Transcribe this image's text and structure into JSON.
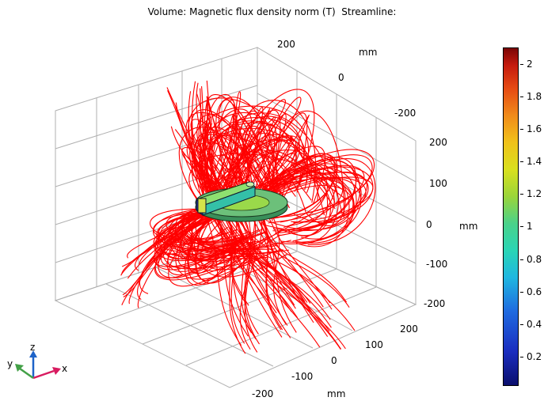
{
  "plot": {
    "title": "Volume: Magnetic flux density norm (T)  Streamline:"
  },
  "axes": {
    "top_ticks": [
      "200",
      "0",
      "-200"
    ],
    "top_unit": "mm",
    "right_ticks": [
      "200",
      "100",
      "0",
      "-100",
      "-200"
    ],
    "right_unit": "mm",
    "front_ticks": [
      "200",
      "100",
      "0",
      "-100",
      "-200"
    ],
    "front_unit": "mm"
  },
  "triad": {
    "x": "x",
    "y": "y",
    "z": "z"
  },
  "colorbar": {
    "ticks": [
      "2",
      "1.8",
      "1.6",
      "1.4",
      "1.2",
      "1",
      "0.8",
      "0.6",
      "0.4",
      "0.2"
    ],
    "range": [
      0.02,
      2.1
    ]
  },
  "colors": {
    "streamline": "#ff0000",
    "grid": "#b0b0b0",
    "triad_x": "#d81b60",
    "triad_y": "#43a047",
    "triad_z": "#1e63c8"
  }
}
